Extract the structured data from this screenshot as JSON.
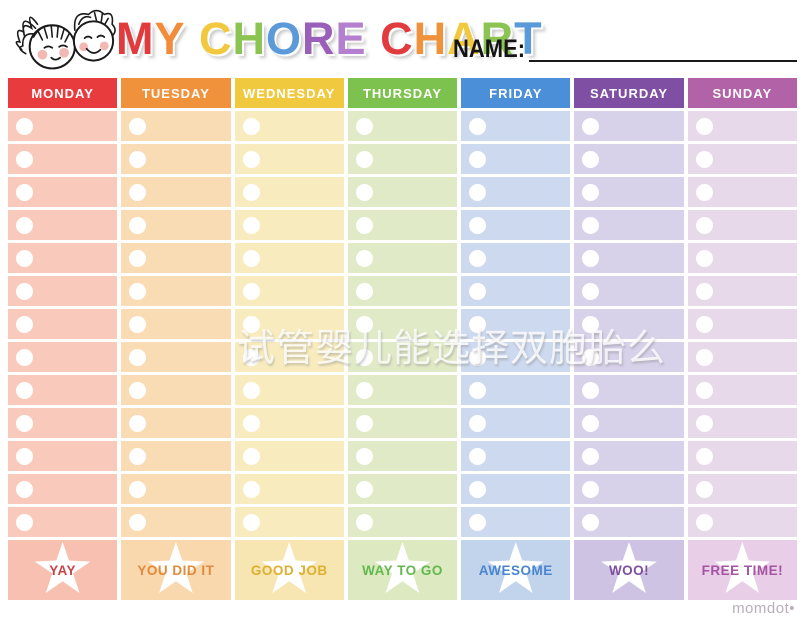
{
  "title": {
    "text": "MY CHORE CHART",
    "letters": [
      {
        "ch": "M",
        "color": "#e23b3e"
      },
      {
        "ch": "Y",
        "color": "#f08c3a"
      },
      {
        "ch": " ",
        "color": ""
      },
      {
        "ch": "C",
        "color": "#f2c83e"
      },
      {
        "ch": "H",
        "color": "#8bc452"
      },
      {
        "ch": "O",
        "color": "#5a9ad8"
      },
      {
        "ch": "R",
        "color": "#9a5fb8"
      },
      {
        "ch": "E",
        "color": "#b57fd0"
      },
      {
        "ch": " ",
        "color": ""
      },
      {
        "ch": "C",
        "color": "#e23b3e"
      },
      {
        "ch": "H",
        "color": "#f0923c"
      },
      {
        "ch": "A",
        "color": "#f2c83e"
      },
      {
        "ch": "R",
        "color": "#8bc452"
      },
      {
        "ch": "T",
        "color": "#5a9ad8"
      }
    ]
  },
  "name_field": {
    "label": "NAME:",
    "value": ""
  },
  "rows_per_day": 13,
  "days": [
    {
      "label": "MONDAY",
      "header_color": "#e83b3e",
      "cell_color": "#f9cabb",
      "reward_bg": "#f7c0b0",
      "reward_label": "YAY",
      "reward_color": "#c9444a"
    },
    {
      "label": "TUESDAY",
      "header_color": "#f0923c",
      "cell_color": "#fadcb4",
      "reward_bg": "#fad8ae",
      "reward_label": "YOU DID IT",
      "reward_color": "#e08a3c"
    },
    {
      "label": "WEDNESDAY",
      "header_color": "#f0c93e",
      "cell_color": "#f8ecbe",
      "reward_bg": "#f7e6b2",
      "reward_label": "GOOD JOB",
      "reward_color": "#ddb032"
    },
    {
      "label": "THURSDAY",
      "header_color": "#7dc24e",
      "cell_color": "#e0eac6",
      "reward_bg": "#dde9c0",
      "reward_label": "WAY TO GO",
      "reward_color": "#62b84e"
    },
    {
      "label": "FRIDAY",
      "header_color": "#4a8fd8",
      "cell_color": "#cdd9ee",
      "reward_bg": "#c2d3ec",
      "reward_label": "AWESOME",
      "reward_color": "#4a86d0"
    },
    {
      "label": "SATURDAY",
      "header_color": "#7e4fa2",
      "cell_color": "#d8d1ea",
      "reward_bg": "#cfc3e3",
      "reward_label": "WOO!",
      "reward_color": "#7d4fa2"
    },
    {
      "label": "SUNDAY",
      "header_color": "#b262a6",
      "cell_color": "#e7d9e9",
      "reward_bg": "#e8cee7",
      "reward_label": "FREE TIME!",
      "reward_color": "#a553a3"
    }
  ],
  "watermark": {
    "text": "试管婴儿能选择双胞胎么"
  },
  "footer": {
    "brand": "momdot•"
  }
}
